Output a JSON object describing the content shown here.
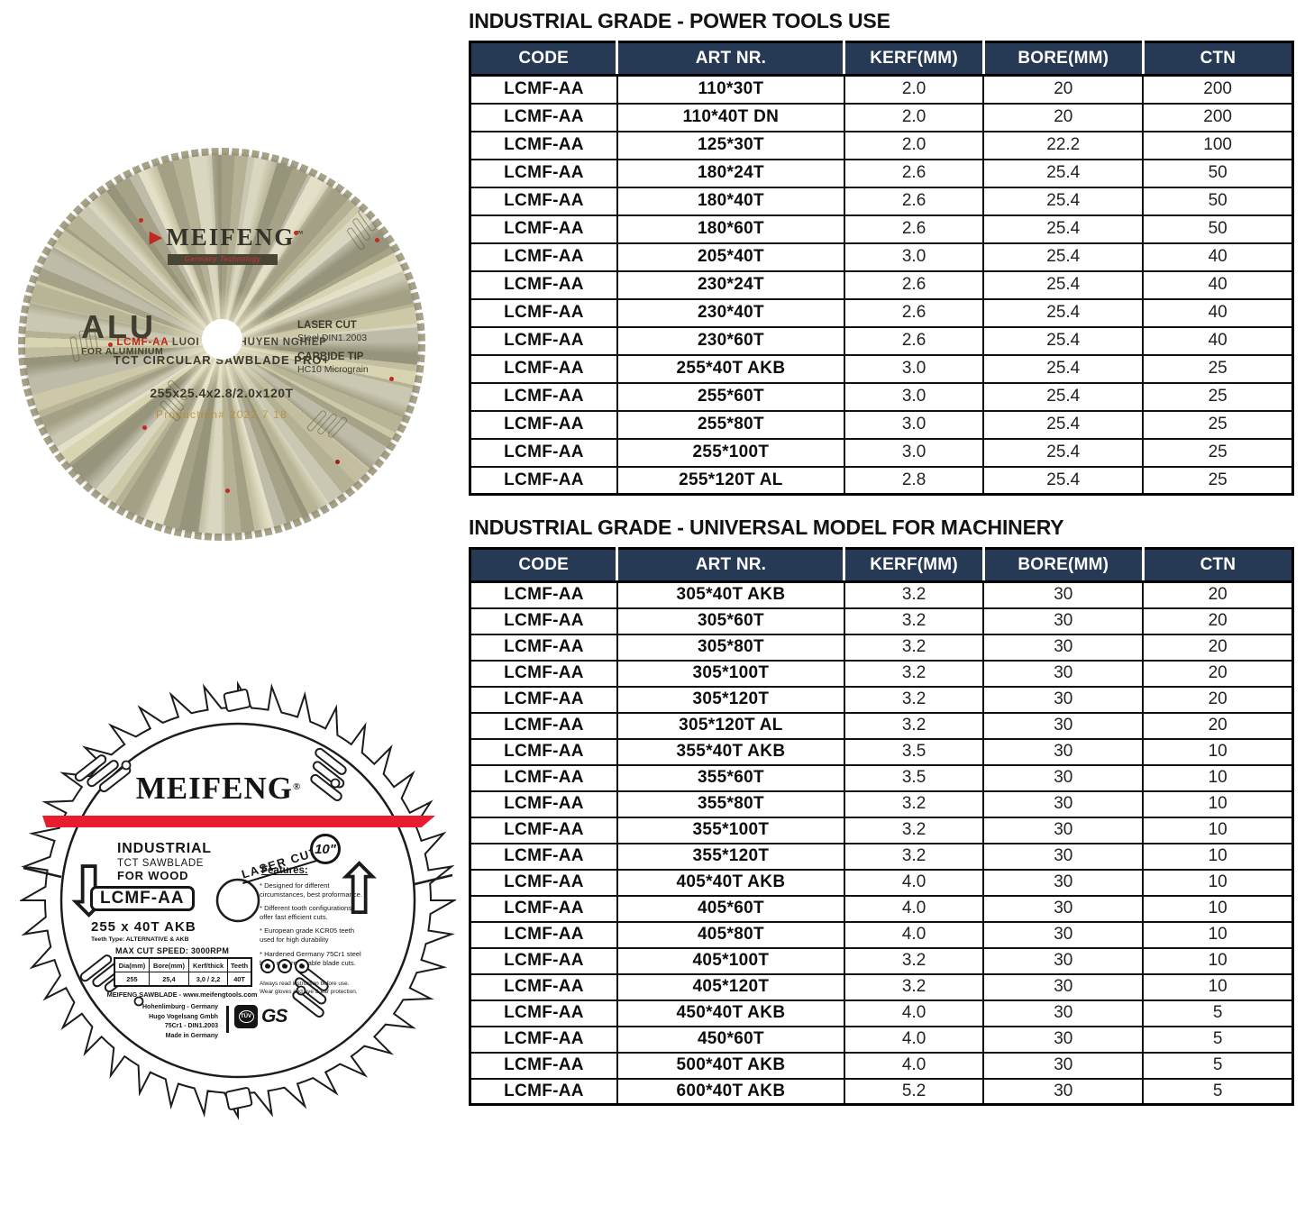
{
  "colors": {
    "header_navy": "#263a55",
    "stripe_red": "#e81c2e",
    "accent_red": "#c3271f",
    "gold_body": "#b9b596",
    "production_gold": "#ba8a2e"
  },
  "tables": [
    {
      "title": "INDUSTRIAL GRADE - POWER TOOLS USE",
      "columns": [
        "CODE",
        "ART NR.",
        "KERF(MM)",
        "BORE(MM)",
        "CTN"
      ],
      "rows": [
        [
          "LCMF-AA",
          "110*30T",
          "2.0",
          "20",
          "200"
        ],
        [
          "LCMF-AA",
          "110*40T DN",
          "2.0",
          "20",
          "200"
        ],
        [
          "LCMF-AA",
          "125*30T",
          "2.0",
          "22.2",
          "100"
        ],
        [
          "LCMF-AA",
          "180*24T",
          "2.6",
          "25.4",
          "50"
        ],
        [
          "LCMF-AA",
          "180*40T",
          "2.6",
          "25.4",
          "50"
        ],
        [
          "LCMF-AA",
          "180*60T",
          "2.6",
          "25.4",
          "50"
        ],
        [
          "LCMF-AA",
          "205*40T",
          "3.0",
          "25.4",
          "40"
        ],
        [
          "LCMF-AA",
          "230*24T",
          "2.6",
          "25.4",
          "40"
        ],
        [
          "LCMF-AA",
          "230*40T",
          "2.6",
          "25.4",
          "40"
        ],
        [
          "LCMF-AA",
          "230*60T",
          "2.6",
          "25.4",
          "40"
        ],
        [
          "LCMF-AA",
          "255*40T AKB",
          "3.0",
          "25.4",
          "25"
        ],
        [
          "LCMF-AA",
          "255*60T",
          "3.0",
          "25.4",
          "25"
        ],
        [
          "LCMF-AA",
          "255*80T",
          "3.0",
          "25.4",
          "25"
        ],
        [
          "LCMF-AA",
          "255*100T",
          "3.0",
          "25.4",
          "25"
        ],
        [
          "LCMF-AA",
          "255*120T AL",
          "2.8",
          "25.4",
          "25"
        ]
      ]
    },
    {
      "title": "INDUSTRIAL GRADE - UNIVERSAL MODEL FOR MACHINERY",
      "columns": [
        "CODE",
        "ART NR.",
        "KERF(MM)",
        "BORE(MM)",
        "CTN"
      ],
      "rows": [
        [
          "LCMF-AA",
          "305*40T AKB",
          "3.2",
          "30",
          "20"
        ],
        [
          "LCMF-AA",
          "305*60T",
          "3.2",
          "30",
          "20"
        ],
        [
          "LCMF-AA",
          "305*80T",
          "3.2",
          "30",
          "20"
        ],
        [
          "LCMF-AA",
          "305*100T",
          "3.2",
          "30",
          "20"
        ],
        [
          "LCMF-AA",
          "305*120T",
          "3.2",
          "30",
          "20"
        ],
        [
          "LCMF-AA",
          "305*120T AL",
          "3.2",
          "30",
          "20"
        ],
        [
          "LCMF-AA",
          "355*40T AKB",
          "3.5",
          "30",
          "10"
        ],
        [
          "LCMF-AA",
          "355*60T",
          "3.5",
          "30",
          "10"
        ],
        [
          "LCMF-AA",
          "355*80T",
          "3.2",
          "30",
          "10"
        ],
        [
          "LCMF-AA",
          "355*100T",
          "3.2",
          "30",
          "10"
        ],
        [
          "LCMF-AA",
          "355*120T",
          "3.2",
          "30",
          "10"
        ],
        [
          "LCMF-AA",
          "405*40T AKB",
          "4.0",
          "30",
          "10"
        ],
        [
          "LCMF-AA",
          "405*60T",
          "4.0",
          "30",
          "10"
        ],
        [
          "LCMF-AA",
          "405*80T",
          "4.0",
          "30",
          "10"
        ],
        [
          "LCMF-AA",
          "405*100T",
          "3.2",
          "30",
          "10"
        ],
        [
          "LCMF-AA",
          "405*120T",
          "3.2",
          "30",
          "10"
        ],
        [
          "LCMF-AA",
          "450*40T AKB",
          "4.0",
          "30",
          "5"
        ],
        [
          "LCMF-AA",
          "450*60T",
          "4.0",
          "30",
          "5"
        ],
        [
          "LCMF-AA",
          "500*40T AKB",
          "4.0",
          "30",
          "5"
        ],
        [
          "LCMF-AA",
          "600*40T AKB",
          "5.2",
          "30",
          "5"
        ]
      ]
    }
  ],
  "blade_photo": {
    "logo": "MEIFENG",
    "logo_tm": "™",
    "banner": "Germany Technology",
    "series_code": "LCMF-AA",
    "series_text": "LUOI CUA CHUYEN NGHIEP",
    "product_line": "TCT CIRCULAR SAWBLADE PRO+",
    "material": "ALU",
    "material_sub": "FOR ALUMINIUM",
    "laser_cut": "LASER CUT",
    "steel": "Steel DIN1.2003",
    "carbide": "CARBIDE TIP",
    "micrograin": "HC10 Micrograin",
    "spec": "255x25.4x2.8/2.0x120T",
    "production": "Production# 2022 7 18"
  },
  "blade_drawing": {
    "logo": "MEIFENG",
    "reg": "®",
    "grade": "INDUSTRIAL",
    "type": "TCT SAWBLADE",
    "use": "FOR WOOD",
    "code": "LCMF-AA",
    "size": "255 x 40T AKB",
    "teeth_type": "Teeth Type: ALTERNATIVE & AKB",
    "max_speed": "MAX CUT SPEED: 3000RPM",
    "laser_cut": "LASER CUT",
    "size_badge": "10\"",
    "features_title": "Features:",
    "features": [
      "* Designed for different circumstances, best proformance.",
      "* Different tooth configurations offer fast efficient cuts.",
      "* European grade KCR05 teeth used for high durability",
      "* Hardened Germany 75Cr1 steel body ensures stable blade cuts."
    ],
    "safety_note1": "Always read instruction before use.",
    "safety_note2": "Wear gloves and eye & ear protection.",
    "spec_table": {
      "columns": [
        "Dia(mm)",
        "Bore(mm)",
        "Kerf/thick",
        "Teeth"
      ],
      "rows": [
        [
          "255",
          "25,4",
          "3,0 / 2,2",
          "40T"
        ]
      ]
    },
    "website": "MEIFENG SAWBLADE - www.meifengtools.com",
    "address": [
      "Hohenlimburg - Germany",
      "Hugo Vogelsang Gmbh",
      "75Cr1 - DIN1.2003",
      "Made in Germany"
    ],
    "cert_tuv": "TÜV",
    "cert_gs": "GS"
  }
}
